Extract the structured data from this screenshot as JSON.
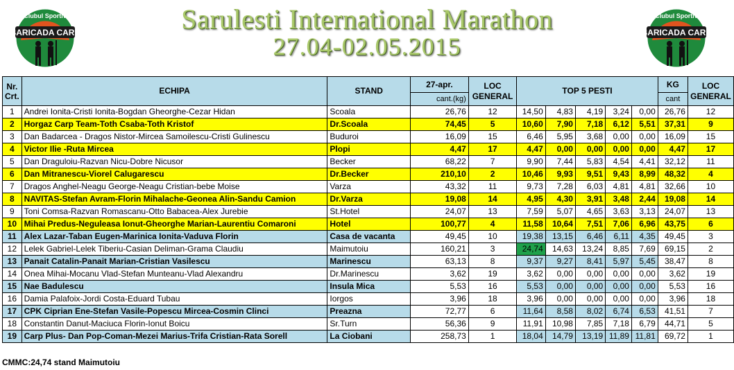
{
  "header": {
    "title": "Sarulesti International Marathon",
    "dates": "27.04-02.05.2015",
    "logo_text_top": "Clubul Sportiv",
    "logo_text_main": "BARICADA CARP"
  },
  "columns": {
    "nr": "Nr.",
    "crt": "Crt.",
    "echipa": "ECHIPA",
    "stand": "STAND",
    "date": "27-apr.",
    "cant": "cant.(kg)",
    "loc1": "LOC",
    "general1": "GENERAL",
    "top5": "TOP 5 PESTI",
    "kg": "KG",
    "cant2": "cant",
    "loc2": "LOC",
    "general2": "GENERAL"
  },
  "rows": [
    {
      "nr": "1",
      "echipa": "Andrei Ionita-Cristi Ionita-Bogdan Gheorghe-Cezar Hidan",
      "stand": "Scoala",
      "cant": "26,76",
      "loc": "12",
      "p1": "14,50",
      "p2": "4,83",
      "p3": "4,19",
      "p4": "3,24",
      "p5": "0,00",
      "kg": "26,76",
      "loc2": "12",
      "style": "white"
    },
    {
      "nr": "2",
      "echipa": "Horgaz Carp Team-Toth Csaba-Toth Kristof",
      "stand": "Dr.Scoala",
      "cant": "74,45",
      "loc": "5",
      "p1": "10,60",
      "p2": "7,90",
      "p3": "7,18",
      "p4": "6,12",
      "p5": "5,51",
      "kg": "37,31",
      "loc2": "9",
      "style": "yellow"
    },
    {
      "nr": "3",
      "echipa": "Dan Badarcea - Dragos Nistor-Mircea Samoilescu-Cristi Gulinescu",
      "stand": "Buduroi",
      "cant": "16,09",
      "loc": "15",
      "p1": "6,46",
      "p2": "5,95",
      "p3": "3,68",
      "p4": "0,00",
      "p5": "0,00",
      "kg": "16,09",
      "loc2": "15",
      "style": "white"
    },
    {
      "nr": "4",
      "echipa": "Victor Ilie -Ruta Mircea",
      "stand": "Plopi",
      "cant": "4,47",
      "loc": "17",
      "p1": "4,47",
      "p2": "0,00",
      "p3": "0,00",
      "p4": "0,00",
      "p5": "0,00",
      "kg": "4,47",
      "loc2": "17",
      "style": "yellow"
    },
    {
      "nr": "5",
      "echipa": "Dan Draguloiu-Razvan Nicu-Dobre Nicusor",
      "stand": "Becker",
      "cant": "68,22",
      "loc": "7",
      "p1": "9,90",
      "p2": "7,44",
      "p3": "5,83",
      "p4": "4,54",
      "p5": "4,41",
      "kg": "32,12",
      "loc2": "11",
      "style": "white"
    },
    {
      "nr": "6",
      "echipa": "Dan Mitranescu-Viorel Calugarescu",
      "stand": "Dr.Becker",
      "cant": "210,10",
      "loc": "2",
      "p1": "10,46",
      "p2": "9,93",
      "p3": "9,51",
      "p4": "9,43",
      "p5": "8,99",
      "kg": "48,32",
      "loc2": "4",
      "style": "yellow"
    },
    {
      "nr": "7",
      "echipa": "Dragos Anghel-Neagu George-Neagu Cristian-bebe Moise",
      "stand": "Varza",
      "cant": "43,32",
      "loc": "11",
      "p1": "9,73",
      "p2": "7,28",
      "p3": "6,03",
      "p4": "4,81",
      "p5": "4,81",
      "kg": "32,66",
      "loc2": "10",
      "style": "white"
    },
    {
      "nr": "8",
      "echipa": "NAVITAS-Stefan Avram-Florin Mihalache-Geonea Alin-Sandu Camion",
      "stand": "Dr.Varza",
      "cant": "19,08",
      "loc": "14",
      "p1": "4,95",
      "p2": "4,30",
      "p3": "3,91",
      "p4": "3,48",
      "p5": "2,44",
      "kg": "19,08",
      "loc2": "14",
      "style": "yellow"
    },
    {
      "nr": "9",
      "echipa": "Toni Comsa-Razvan Romascanu-Otto Babacea-Alex Jurebie",
      "stand": "St.Hotel",
      "cant": "24,07",
      "loc": "13",
      "p1": "7,59",
      "p2": "5,07",
      "p3": "4,65",
      "p4": "3,63",
      "p5": "3,13",
      "kg": "24,07",
      "loc2": "13",
      "style": "white"
    },
    {
      "nr": "10",
      "echipa": "Mihai Predus-Neguleasa Ionut-Gheorghe Marian-Laurentiu Comaroni",
      "stand": "Hotel",
      "cant": "100,77",
      "loc": "4",
      "p1": "11,58",
      "p2": "10,64",
      "p3": "7,51",
      "p4": "7,06",
      "p5": "6,96",
      "kg": "43,75",
      "loc2": "6",
      "style": "yellow"
    },
    {
      "nr": "11",
      "echipa": "Alex Lazar-Taban Eugen-Marinica Ionita-Vaduva Florin",
      "stand": "Casa de vacanta",
      "cant": "49,45",
      "loc": "10",
      "p1": "19,38",
      "p2": "13,15",
      "p3": "6,46",
      "p4": "6,11",
      "p5": "4,35",
      "kg": "49,45",
      "loc2": "3",
      "style": "blue"
    },
    {
      "nr": "12",
      "echipa": "Lelek Gabriel-Lelek Tiberiu-Casian Deliman-Grama Claudiu",
      "stand": "Maimutoiu",
      "cant": "160,21",
      "loc": "3",
      "p1": "24,74",
      "p2": "14,63",
      "p3": "13,24",
      "p4": "8,85",
      "p5": "7,69",
      "kg": "69,15",
      "loc2": "2",
      "style": "white",
      "highlight_p1": true
    },
    {
      "nr": "13",
      "echipa": "Panait Catalin-Panait Marian-Cristian Vasilescu",
      "stand": "Marinescu",
      "cant": "63,13",
      "loc": "8",
      "p1": "9,37",
      "p2": "9,27",
      "p3": "8,41",
      "p4": "5,97",
      "p5": "5,45",
      "kg": "38,47",
      "loc2": "8",
      "style": "blue"
    },
    {
      "nr": "14",
      "echipa": "Onea Mihai-Mocanu Vlad-Stefan Munteanu-Vlad Alexandru",
      "stand": "Dr.Marinescu",
      "cant": "3,62",
      "loc": "19",
      "p1": "3,62",
      "p2": "0,00",
      "p3": "0,00",
      "p4": "0,00",
      "p5": "0,00",
      "kg": "3,62",
      "loc2": "19",
      "style": "white"
    },
    {
      "nr": "15",
      "echipa": "Nae Badulescu",
      "stand": "Insula Mica",
      "cant": "5,53",
      "loc": "16",
      "p1": "5,53",
      "p2": "0,00",
      "p3": "0,00",
      "p4": "0,00",
      "p5": "0,00",
      "kg": "5,53",
      "loc2": "16",
      "style": "blue"
    },
    {
      "nr": "16",
      "echipa": "Damia Palafoix-Jordi Costa-Eduard Tubau",
      "stand": "Iorgos",
      "cant": "3,96",
      "loc": "18",
      "p1": "3,96",
      "p2": "0,00",
      "p3": "0,00",
      "p4": "0,00",
      "p5": "0,00",
      "kg": "3,96",
      "loc2": "18",
      "style": "white"
    },
    {
      "nr": "17",
      "echipa": "CPK Ciprian Ene-Stefan Vasile-Popescu Mircea-Cosmin Clinci",
      "stand": "Preazna",
      "cant": "72,77",
      "loc": "6",
      "p1": "11,64",
      "p2": "8,58",
      "p3": "8,02",
      "p4": "6,74",
      "p5": "6,53",
      "kg": "41,51",
      "loc2": "7",
      "style": "blue"
    },
    {
      "nr": "18",
      "echipa": "Constantin Danut-Maciuca Florin-Ionut Boicu",
      "stand": "Sr.Turn",
      "cant": "56,36",
      "loc": "9",
      "p1": "11,91",
      "p2": "10,98",
      "p3": "7,85",
      "p4": "7,18",
      "p5": "6,79",
      "kg": "44,71",
      "loc2": "5",
      "style": "white"
    },
    {
      "nr": "19",
      "echipa": "Carp Plus- Dan Pop-Coman-Mezei Marius-Trifa Cristian-Rata Sorell",
      "stand": "La Ciobani",
      "cant": "258,73",
      "loc": "1",
      "p1": "18,04",
      "p2": "14,79",
      "p3": "13,19",
      "p4": "11,89",
      "p5": "11,81",
      "kg": "69,72",
      "loc2": "1",
      "style": "blue"
    }
  ],
  "footer": "CMMC:24,74 stand Maimutoiu"
}
